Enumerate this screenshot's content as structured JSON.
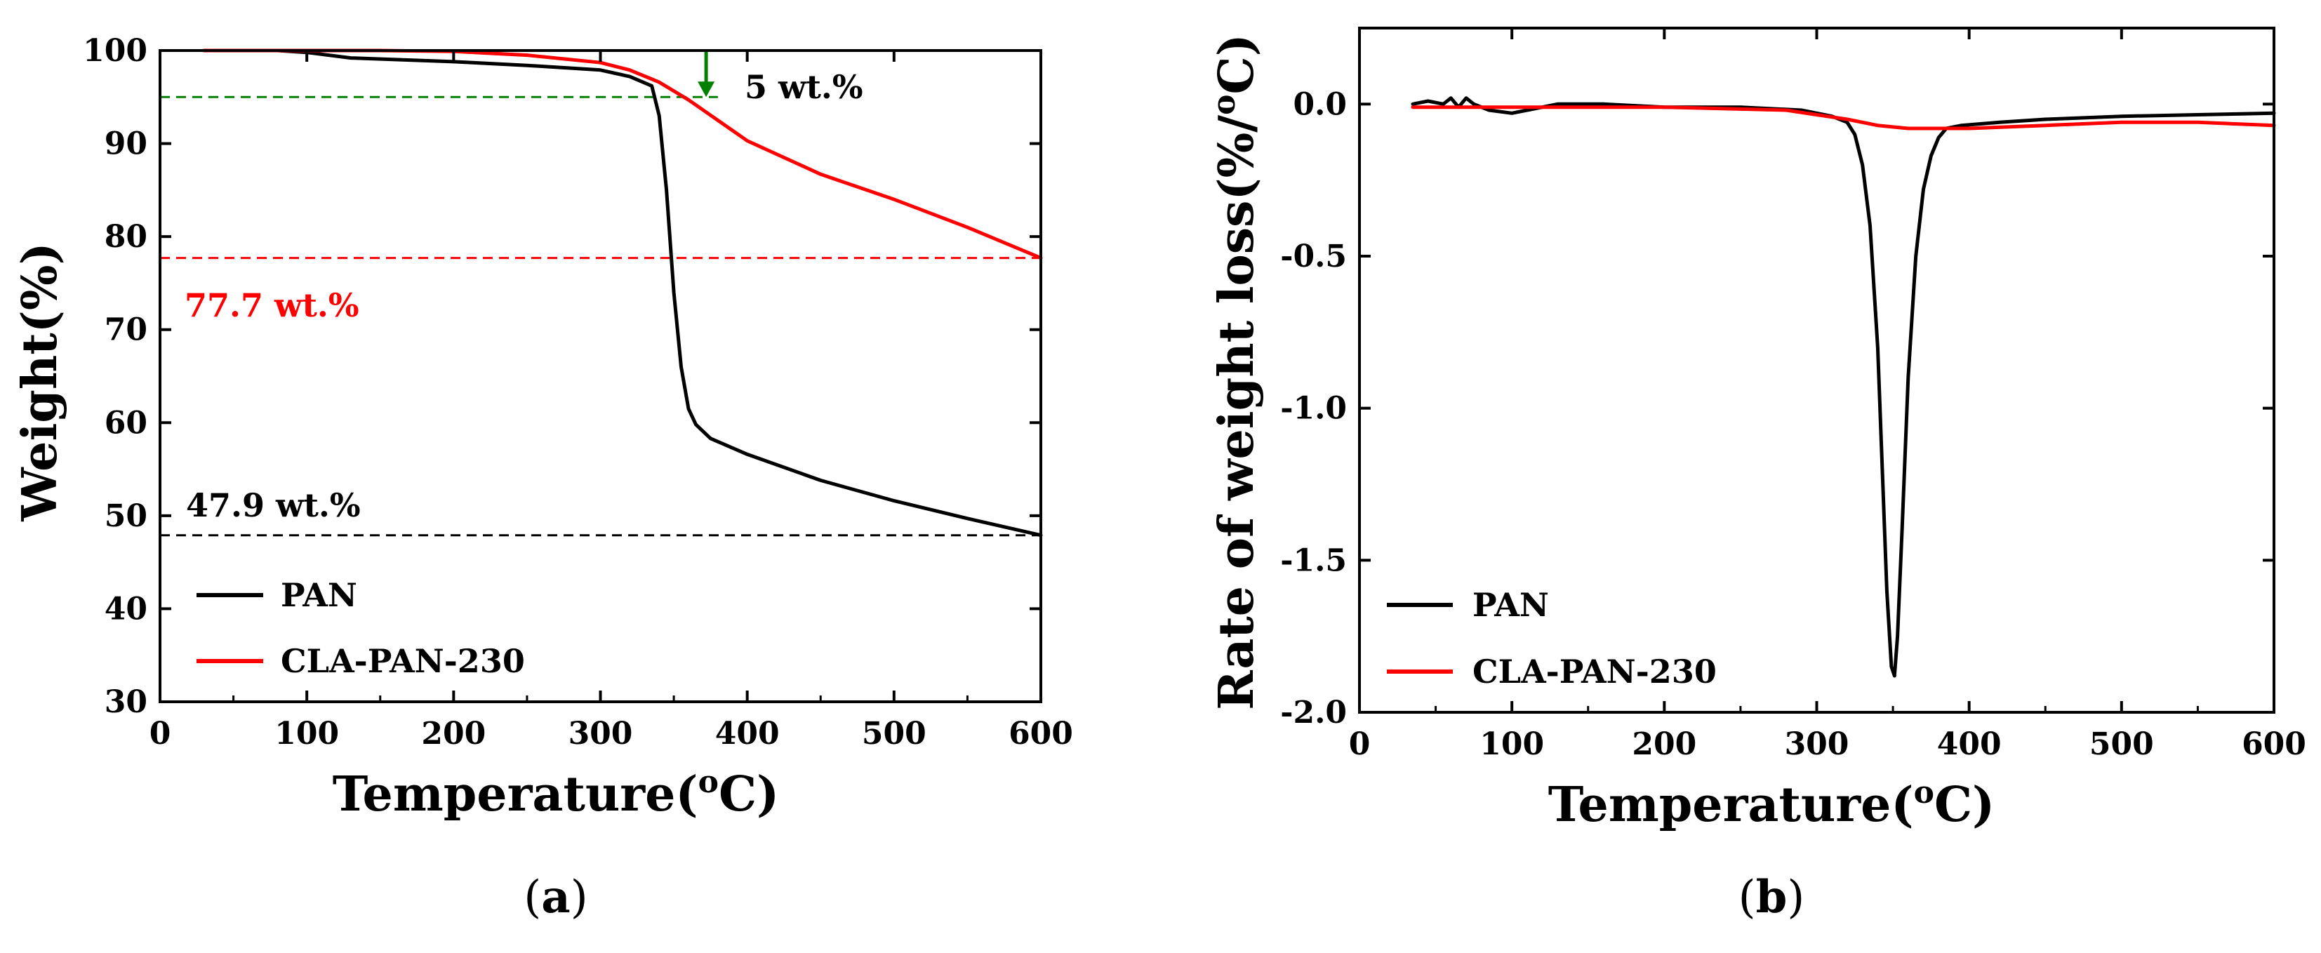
{
  "chart_data": [
    {
      "panel": "(a)",
      "panel_letter": "a",
      "type": "line",
      "title": "",
      "xlabel": "Temperature(",
      "xlabel_sup": "o",
      "xlabel_end": "C)",
      "ylabel": "Weight(%)",
      "xlim": [
        0,
        600
      ],
      "ylim": [
        30,
        100
      ],
      "xticks": [
        0,
        100,
        200,
        300,
        400,
        500,
        600
      ],
      "yticks": [
        30,
        40,
        50,
        60,
        70,
        80,
        90,
        100
      ],
      "legend_position": "bottom-left",
      "series": [
        {
          "name": "PAN",
          "color": "#000000",
          "x": [
            30,
            80,
            100,
            130,
            200,
            250,
            300,
            320,
            335,
            340,
            345,
            350,
            355,
            360,
            365,
            375,
            400,
            450,
            500,
            550,
            600
          ],
          "y": [
            100,
            100,
            99.8,
            99.2,
            98.8,
            98.4,
            97.9,
            97.2,
            96.2,
            93,
            85,
            74,
            66,
            61.5,
            59.8,
            58.3,
            56.6,
            53.8,
            51.6,
            49.7,
            47.9
          ]
        },
        {
          "name": "CLA-PAN-230",
          "color": "#ff0000",
          "x": [
            30,
            100,
            150,
            200,
            250,
            300,
            320,
            340,
            360,
            380,
            400,
            450,
            500,
            550,
            600
          ],
          "y": [
            100,
            100,
            100,
            99.9,
            99.5,
            98.7,
            97.9,
            96.6,
            94.7,
            92.5,
            90.3,
            86.7,
            84,
            81,
            77.7
          ]
        }
      ],
      "reference_lines": [
        {
          "y": 95,
          "x_range": [
            0,
            380
          ],
          "color": "#008000",
          "label": "5 wt.%"
        },
        {
          "y": 77.7,
          "x_range": [
            0,
            600
          ],
          "color": "#ff0000",
          "label": "77.7 wt.%"
        },
        {
          "y": 47.9,
          "x_range": [
            0,
            600
          ],
          "color": "#000000",
          "label": "47.9 wt.%"
        }
      ],
      "arrow": {
        "x": 372,
        "y_from": 100,
        "y_to": 95,
        "color": "#008000"
      }
    },
    {
      "panel": "(b)",
      "panel_letter": "b",
      "type": "line",
      "title": "",
      "xlabel": "Temperature(",
      "xlabel_sup": "o",
      "xlabel_end": "C)",
      "ylabel": "Rate of weight loss(%/",
      "ylabel_sup": "o",
      "ylabel_end": "C)",
      "xlim": [
        0,
        600
      ],
      "ylim": [
        -2.0,
        0.25
      ],
      "xticks": [
        0,
        100,
        200,
        300,
        400,
        500,
        600
      ],
      "yticks": [
        -2.0,
        -1.5,
        -1.0,
        -0.5,
        0.0
      ],
      "ytick_labels": [
        "-2.0",
        "-1.5",
        "-1.0",
        "-0.5",
        "0.0"
      ],
      "legend_position": "bottom-left",
      "series": [
        {
          "name": "PAN",
          "color": "#000000",
          "x": [
            35,
            45,
            55,
            60,
            65,
            70,
            75,
            85,
            100,
            110,
            130,
            160,
            200,
            250,
            290,
            310,
            320,
            325,
            330,
            335,
            340,
            343,
            346,
            349,
            351,
            353,
            356,
            360,
            365,
            370,
            375,
            380,
            385,
            395,
            420,
            450,
            500,
            550,
            600
          ],
          "y": [
            0.0,
            0.01,
            0.0,
            0.02,
            -0.01,
            0.02,
            0.0,
            -0.02,
            -0.03,
            -0.02,
            0.0,
            0.0,
            -0.01,
            -0.01,
            -0.02,
            -0.04,
            -0.06,
            -0.1,
            -0.2,
            -0.4,
            -0.8,
            -1.2,
            -1.6,
            -1.85,
            -1.88,
            -1.75,
            -1.4,
            -0.9,
            -0.5,
            -0.28,
            -0.17,
            -0.11,
            -0.08,
            -0.07,
            -0.06,
            -0.05,
            -0.04,
            -0.035,
            -0.03
          ]
        },
        {
          "name": "CLA-PAN-230",
          "color": "#ff0000",
          "x": [
            35,
            100,
            200,
            280,
            320,
            340,
            360,
            380,
            400,
            450,
            500,
            550,
            600
          ],
          "y": [
            -0.01,
            -0.01,
            -0.01,
            -0.02,
            -0.05,
            -0.07,
            -0.08,
            -0.08,
            -0.08,
            -0.07,
            -0.06,
            -0.06,
            -0.07
          ]
        }
      ]
    }
  ]
}
